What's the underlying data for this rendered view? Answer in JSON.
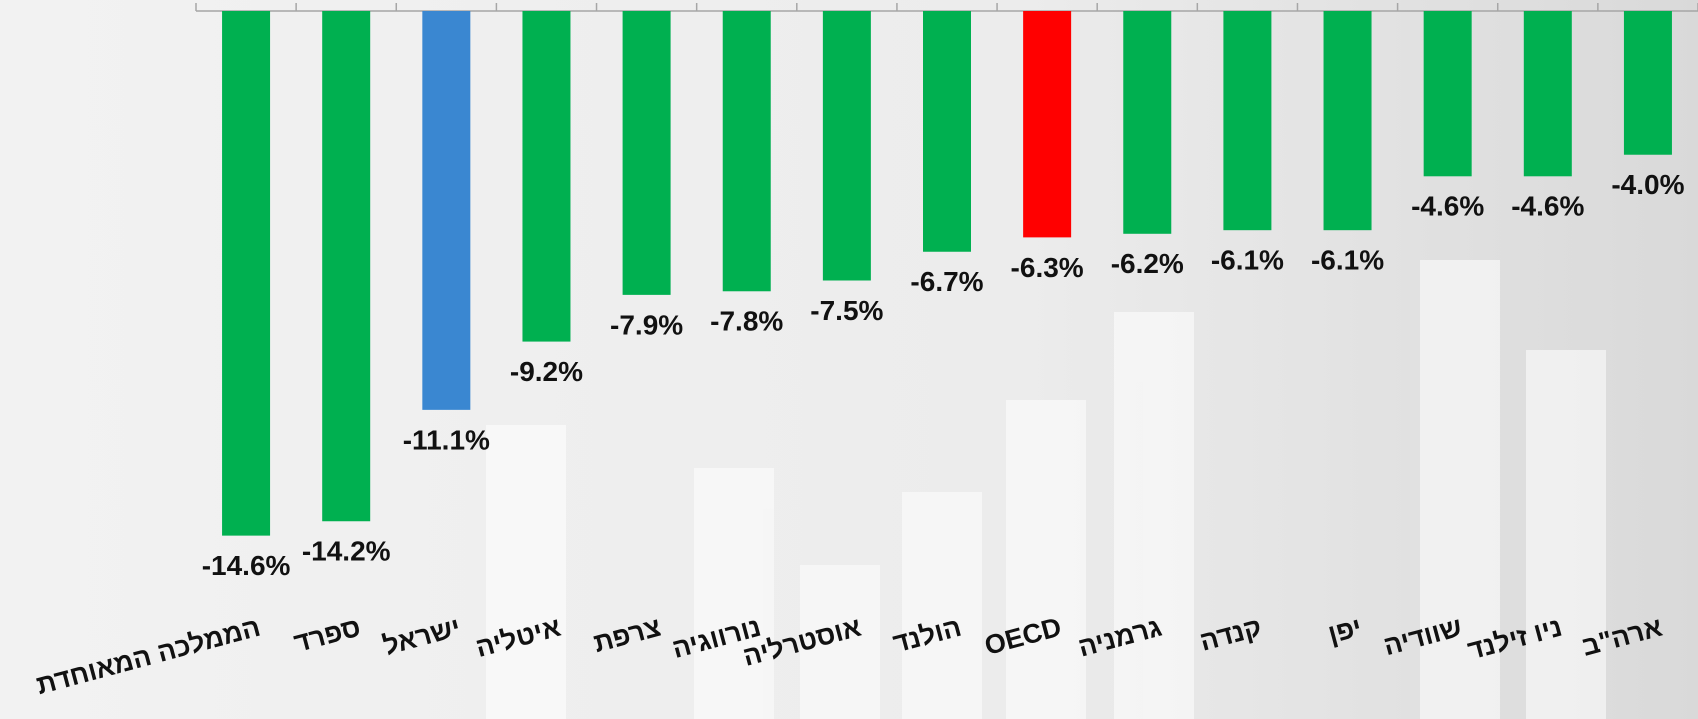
{
  "chart_data": {
    "type": "bar",
    "categories": [
      "הממלכה המאוחדת",
      "ספרד",
      "ישראל",
      "איטליה",
      "צרפת",
      "נורווגיה",
      "אוסטרליה",
      "הולנד",
      "OECD",
      "גרמניה",
      "קנדה",
      "יפן",
      "שוודיה",
      "ניו זילנד",
      "ארה\"ב"
    ],
    "values": [
      -14.6,
      -14.2,
      -11.1,
      -9.2,
      -7.9,
      -7.8,
      -7.5,
      -6.7,
      -6.3,
      -6.2,
      -6.1,
      -6.1,
      -4.6,
      -4.6,
      -4.0
    ],
    "value_labels": [
      "-14.6%",
      "-14.2%",
      "-11.1%",
      "-9.2%",
      "-7.9%",
      "-7.8%",
      "-7.5%",
      "-6.7%",
      "-6.3%",
      "-6.2%",
      "-6.1%",
      "-6.1%",
      "-4.6%",
      "-4.6%",
      "-4.0%"
    ],
    "colors": [
      "#00b050",
      "#00b050",
      "#3a87d1",
      "#00b050",
      "#00b050",
      "#00b050",
      "#00b050",
      "#00b050",
      "#ff0000",
      "#00b050",
      "#00b050",
      "#00b050",
      "#00b050",
      "#00b050",
      "#00b050"
    ],
    "ylim": [
      -15,
      0
    ]
  }
}
